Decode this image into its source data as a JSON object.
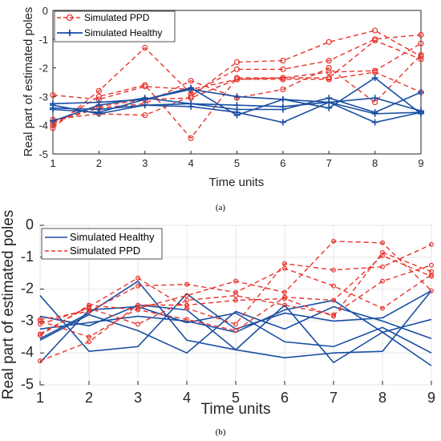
{
  "colors": {
    "ppd": "#e8332c",
    "healthy": "#1a4fa3",
    "grid": "#e6e6e6",
    "axis": "#262626"
  },
  "chart_data": [
    {
      "type": "line",
      "caption": "(a)",
      "xlabel": "Time units",
      "ylabel": "Real part of estimated poles",
      "xlim": [
        1,
        9
      ],
      "ylim": [
        -5,
        0
      ],
      "x": [
        1,
        2,
        3,
        4,
        5,
        6,
        7,
        8,
        9
      ],
      "xticks": [
        "1",
        "2",
        "3",
        "4",
        "5",
        "6",
        "7",
        "8",
        "9"
      ],
      "yticks": [
        "-5",
        "-4",
        "-3",
        "-2",
        "-1",
        "0"
      ],
      "grid": false,
      "legend_position": "top-left",
      "legend": [
        "Simulated PPD",
        "Simulated Healthy"
      ],
      "series": [
        {
          "group": "PPD",
          "values": [
            -4.1,
            -2.8,
            -1.3,
            -2.9,
            -2.05,
            -2.05,
            -1.75,
            -1.0,
            -0.85
          ]
        },
        {
          "group": "PPD",
          "values": [
            -3.8,
            -3.6,
            -3.65,
            -3.0,
            -1.8,
            -1.75,
            -1.1,
            -0.7,
            -1.6
          ]
        },
        {
          "group": "PPD",
          "values": [
            -4.0,
            -3.0,
            -2.6,
            -4.45,
            -2.35,
            -2.35,
            -2.15,
            -2.1,
            -1.15
          ]
        },
        {
          "group": "PPD",
          "values": [
            -2.95,
            -3.1,
            -2.65,
            -2.75,
            -2.4,
            -2.35,
            -2.35,
            -1.05,
            -1.7
          ]
        },
        {
          "group": "PPD",
          "values": [
            -3.9,
            -3.4,
            -3.25,
            -2.45,
            -3.05,
            -2.75,
            -2.0,
            -3.2,
            -1.55
          ]
        },
        {
          "group": "PPD",
          "values": [
            -3.9,
            -3.35,
            -3.1,
            -3.05,
            -2.4,
            -2.4,
            -2.4,
            -2.15,
            -2.85
          ]
        },
        {
          "group": "Healthy",
          "values": [
            -3.25,
            -3.2,
            -3.1,
            -2.75,
            -3.0,
            -3.1,
            -3.2,
            -3.6,
            -3.55
          ]
        },
        {
          "group": "Healthy",
          "values": [
            -3.3,
            -3.6,
            -3.3,
            -3.35,
            -3.55,
            -3.9,
            -3.2,
            -3.9,
            -3.55
          ]
        },
        {
          "group": "Healthy",
          "values": [
            -3.45,
            -3.55,
            -3.1,
            -2.7,
            -3.65,
            -3.1,
            -3.4,
            -2.35,
            -3.6
          ]
        },
        {
          "group": "Healthy",
          "values": [
            -3.85,
            -3.3,
            -3.05,
            -3.25,
            -3.45,
            -3.45,
            -3.05,
            -3.55,
            -2.85
          ]
        },
        {
          "group": "Healthy",
          "values": [
            -3.4,
            -3.45,
            -3.3,
            -3.25,
            -3.3,
            -3.35,
            -3.2,
            -3.05,
            -3.5
          ]
        }
      ]
    },
    {
      "type": "line",
      "caption": "(b)",
      "xlabel": "Time units",
      "ylabel": "Real part of estimated poles",
      "xlim": [
        1,
        9
      ],
      "ylim": [
        -5,
        0
      ],
      "x": [
        1,
        2,
        3,
        4,
        5,
        6,
        7,
        8,
        9
      ],
      "xticks": [
        "1",
        "2",
        "3",
        "4",
        "5",
        "6",
        "7",
        "8",
        "9"
      ],
      "yticks": [
        "-5",
        "-4",
        "-3",
        "-2",
        "-1",
        "0"
      ],
      "grid": true,
      "legend_position": "top-left",
      "legend": [
        "Simulated Healthy",
        "Simulated PPD"
      ],
      "series": [
        {
          "group": "Healthy",
          "values": [
            -2.2,
            -3.95,
            -3.8,
            -2.15,
            -3.25,
            -2.75,
            -3.0,
            -2.9,
            -2.05
          ]
        },
        {
          "group": "Healthy",
          "values": [
            -3.55,
            -2.75,
            -1.75,
            -3.6,
            -3.9,
            -2.5,
            -4.3,
            -3.35,
            -2.95
          ]
        },
        {
          "group": "Healthy",
          "values": [
            -2.85,
            -3.15,
            -2.5,
            -2.65,
            -3.9,
            -4.15,
            -4.0,
            -3.95,
            -2.05
          ]
        },
        {
          "group": "Healthy",
          "values": [
            -3.6,
            -2.8,
            -3.3,
            -4.0,
            -2.7,
            -3.25,
            -2.55,
            -3.0,
            -3.55
          ]
        },
        {
          "group": "Healthy",
          "values": [
            -4.3,
            -2.65,
            -2.55,
            -3.05,
            -2.75,
            -3.65,
            -3.8,
            -3.2,
            -4.0
          ]
        },
        {
          "group": "Healthy",
          "values": [
            -3.25,
            -3.05,
            -2.85,
            -3.0,
            -3.35,
            -2.65,
            -2.35,
            -3.35,
            -4.4
          ]
        },
        {
          "group": "PPD",
          "values": [
            -3.0,
            -3.5,
            -2.6,
            -2.2,
            -1.75,
            -2.1,
            -0.5,
            -0.55,
            -2.05
          ]
        },
        {
          "group": "PPD",
          "values": [
            -3.4,
            -2.55,
            -1.65,
            -2.6,
            -3.1,
            -1.2,
            -1.4,
            -1.3,
            -0.6
          ]
        },
        {
          "group": "PPD",
          "values": [
            -2.95,
            -2.7,
            -1.9,
            -1.85,
            -2.1,
            -1.35,
            -1.9,
            -2.6,
            -1.55
          ]
        },
        {
          "group": "PPD",
          "values": [
            -3.1,
            -2.6,
            -3.1,
            -2.35,
            -2.2,
            -2.5,
            -2.8,
            -1.75,
            -1.25
          ]
        },
        {
          "group": "PPD",
          "values": [
            -4.25,
            -3.65,
            -2.5,
            -2.5,
            -2.35,
            -2.3,
            -2.85,
            -0.85,
            -1.45
          ]
        },
        {
          "group": "PPD",
          "values": [
            -3.45,
            -2.5,
            -2.65,
            -2.95,
            -3.3,
            -2.25,
            -2.35,
            -0.95,
            -1.6
          ]
        }
      ]
    }
  ]
}
